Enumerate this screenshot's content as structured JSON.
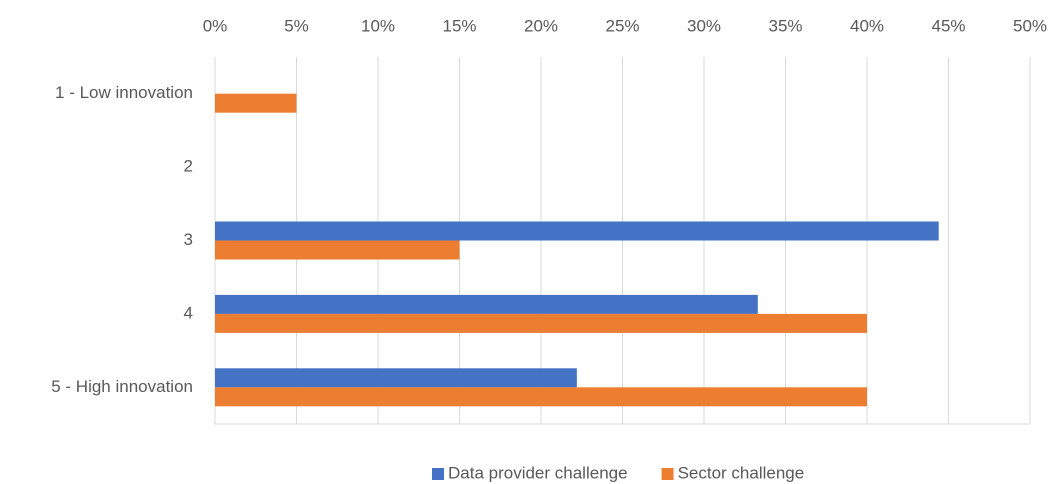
{
  "chart_data": {
    "type": "bar",
    "orientation": "horizontal",
    "categories": [
      "1 - Low innovation",
      "2",
      "3",
      "4",
      "5 - High innovation"
    ],
    "series": [
      {
        "name": "Data provider challenge",
        "color": "#4472c4",
        "values": [
          0,
          0,
          44.4,
          33.3,
          22.2
        ]
      },
      {
        "name": "Sector challenge",
        "color": "#ed7d31",
        "values": [
          5,
          0,
          15,
          40,
          40
        ]
      }
    ],
    "xlim": [
      0,
      50
    ],
    "xticks": [
      {
        "value": 0,
        "label": "0%"
      },
      {
        "value": 5,
        "label": "5%"
      },
      {
        "value": 10,
        "label": "10%"
      },
      {
        "value": 15,
        "label": "15%"
      },
      {
        "value": 20,
        "label": "20%"
      },
      {
        "value": 25,
        "label": "25%"
      },
      {
        "value": 30,
        "label": "30%"
      },
      {
        "value": 35,
        "label": "35%"
      },
      {
        "value": 40,
        "label": "40%"
      },
      {
        "value": 45,
        "label": "45%"
      },
      {
        "value": 50,
        "label": "50%"
      }
    ],
    "grid": true,
    "legend": "bottom"
  }
}
